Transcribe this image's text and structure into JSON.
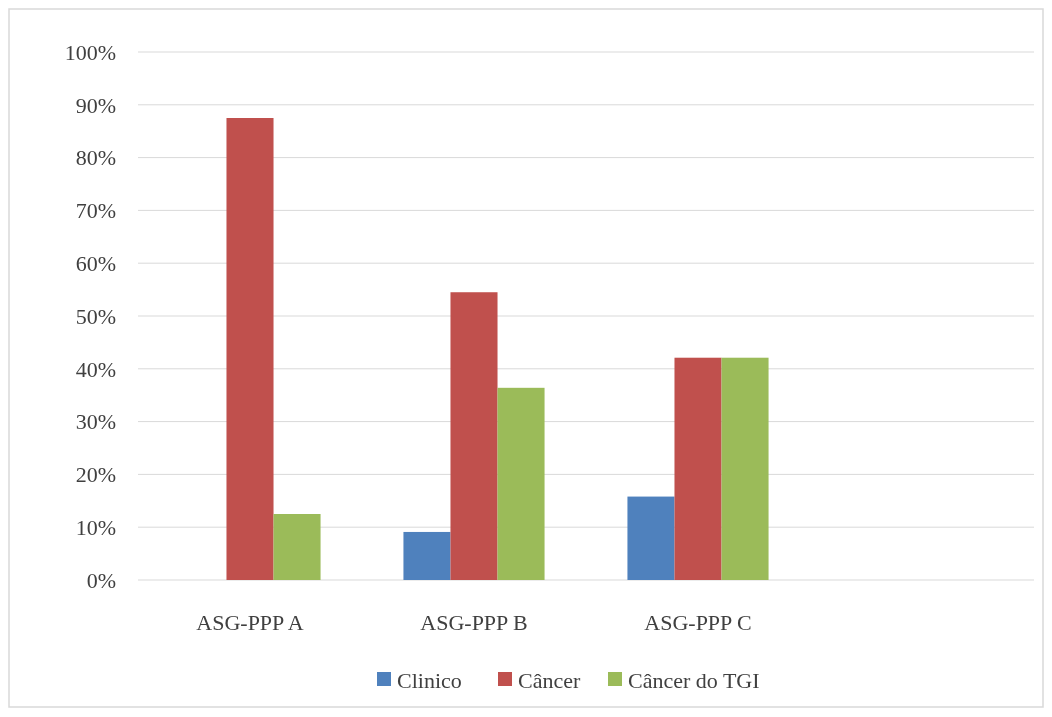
{
  "chart_data": {
    "type": "bar",
    "categories": [
      "ASG-PPP A",
      "ASG-PPP B",
      "ASG-PPP C",
      null
    ],
    "series": [
      {
        "name": "Clinico",
        "color": "#4f81bd",
        "values": [
          null,
          9.1,
          15.8,
          null
        ]
      },
      {
        "name": "Câncer",
        "color": "#c0504d",
        "values": [
          87.5,
          54.5,
          42.1,
          null
        ]
      },
      {
        "name": "Câncer do TGI",
        "color": "#9bbb59",
        "values": [
          12.5,
          36.4,
          42.1,
          null
        ]
      }
    ],
    "ylim": [
      0,
      100
    ],
    "yticks": [
      {
        "value": 0,
        "label": "0%"
      },
      {
        "value": 10,
        "label": "10%"
      },
      {
        "value": 20,
        "label": "20%"
      },
      {
        "value": 30,
        "label": "30%"
      },
      {
        "value": 40,
        "label": "40%"
      },
      {
        "value": 50,
        "label": "50%"
      },
      {
        "value": 60,
        "label": "60%"
      },
      {
        "value": 70,
        "label": "70%"
      },
      {
        "value": 80,
        "label": "80%"
      },
      {
        "value": 90,
        "label": "90%"
      },
      {
        "value": 100,
        "label": "100%"
      }
    ],
    "grid": "y",
    "legend": "bottom"
  }
}
